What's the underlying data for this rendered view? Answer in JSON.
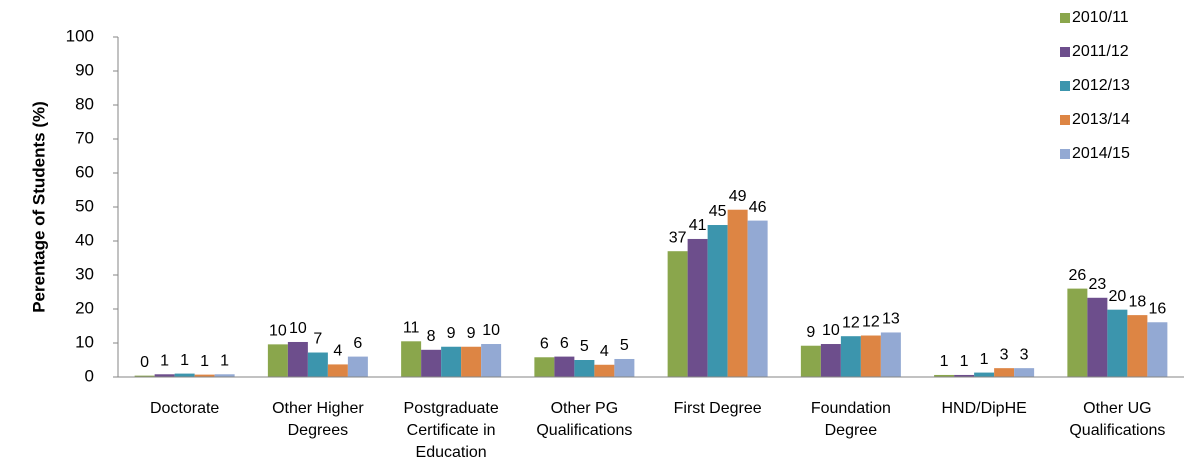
{
  "chart_data": {
    "type": "bar",
    "y_label": "Perentage of Students (%)",
    "categories": [
      "Doctorate",
      "Other Higher Degrees",
      "Postgraduate Certificate in Education",
      "Other PG Qualifications",
      "First Degree",
      "Foundation Degree",
      "HND/DipHE",
      "Other UG Qualifications"
    ],
    "series": [
      {
        "name": "2010/11",
        "color": "#8aa64c",
        "values": [
          0.4,
          9.6,
          10.5,
          5.8,
          37.0,
          9.2,
          0.6,
          26.0
        ],
        "value_labels": [
          "0",
          "10",
          "11",
          "6",
          "37",
          "9",
          "1",
          "26"
        ]
      },
      {
        "name": "2011/12",
        "color": "#6d4e8c",
        "values": [
          0.8,
          10.3,
          8.0,
          6.0,
          40.6,
          9.7,
          0.6,
          23.3
        ],
        "value_labels": [
          "1",
          "10",
          "8",
          "6",
          "41",
          "10",
          "1",
          "23"
        ]
      },
      {
        "name": "2012/13",
        "color": "#3c95ad",
        "values": [
          1.0,
          7.2,
          8.9,
          5.0,
          44.7,
          12.0,
          1.3,
          19.8
        ],
        "value_labels": [
          "1",
          "7",
          "9",
          "5",
          "45",
          "12",
          "1",
          "20"
        ]
      },
      {
        "name": "2013/14",
        "color": "#dd8544",
        "values": [
          0.7,
          3.7,
          8.9,
          3.6,
          49.2,
          12.2,
          2.6,
          18.2
        ],
        "value_labels": [
          "1",
          "4",
          "9",
          "4",
          "49",
          "12",
          "3",
          "18"
        ]
      },
      {
        "name": "2014/15",
        "color": "#93a9d3",
        "values": [
          0.8,
          6.0,
          9.7,
          5.3,
          46.0,
          13.1,
          2.6,
          16.1
        ],
        "value_labels": [
          "1",
          "6",
          "10",
          "5",
          "46",
          "13",
          "3",
          "16"
        ]
      }
    ],
    "ylim": [
      0,
      100
    ],
    "yticks": [
      0,
      10,
      20,
      30,
      40,
      50,
      60,
      70,
      80,
      90,
      100
    ],
    "legend": "top-right"
  }
}
